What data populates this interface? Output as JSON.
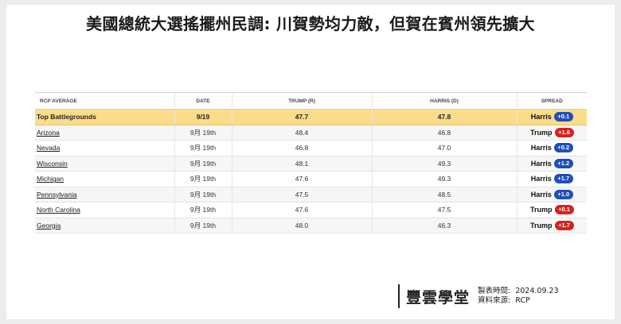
{
  "title": "美國總統大選搖擺州民調: 川賀勢均力敵，但賀在賓州領先擴大",
  "table": {
    "headers": [
      "RCP AVERAGE",
      "DATE",
      "TRUMP (R)",
      "HARRIS (D)",
      "SPREAD"
    ],
    "summary": {
      "label": "Top Battlegrounds",
      "date": "9/19",
      "trump": "47.7",
      "harris": "47.8",
      "leader": "Harris",
      "margin": "+0.1"
    },
    "rows": [
      {
        "state": "Arizona",
        "date": "9月 19th",
        "trump": "48.4",
        "harris": "46.8",
        "leader": "Trump",
        "margin": "+1.6"
      },
      {
        "state": "Nevada",
        "date": "9月 19th",
        "trump": "46.8",
        "harris": "47.0",
        "leader": "Harris",
        "margin": "+0.2"
      },
      {
        "state": "Wisconsin",
        "date": "9月 19th",
        "trump": "48.1",
        "harris": "49.3",
        "leader": "Harris",
        "margin": "+1.2"
      },
      {
        "state": "Michigan",
        "date": "9月 19th",
        "trump": "47.6",
        "harris": "49.3",
        "leader": "Harris",
        "margin": "+1.7"
      },
      {
        "state": "Pennsylvania",
        "date": "9月 19th",
        "trump": "47.5",
        "harris": "48.5",
        "leader": "Harris",
        "margin": "+1.0"
      },
      {
        "state": "North Carolina",
        "date": "9月 19th",
        "trump": "47.6",
        "harris": "47.5",
        "leader": "Trump",
        "margin": "+0.1"
      },
      {
        "state": "Georgia",
        "date": "9月 19th",
        "trump": "48.0",
        "harris": "46.3",
        "leader": "Trump",
        "margin": "+1.7"
      }
    ]
  },
  "colors": {
    "harris": "#1f4fb8",
    "trump": "#d4241e",
    "summary_bg": "#fbdc8b"
  },
  "footer": {
    "brand": "豐雲學堂",
    "made_label": "製表時間:",
    "made_value": "2024.09.23",
    "source_label": "資料來源:",
    "source_value": "RCP"
  }
}
